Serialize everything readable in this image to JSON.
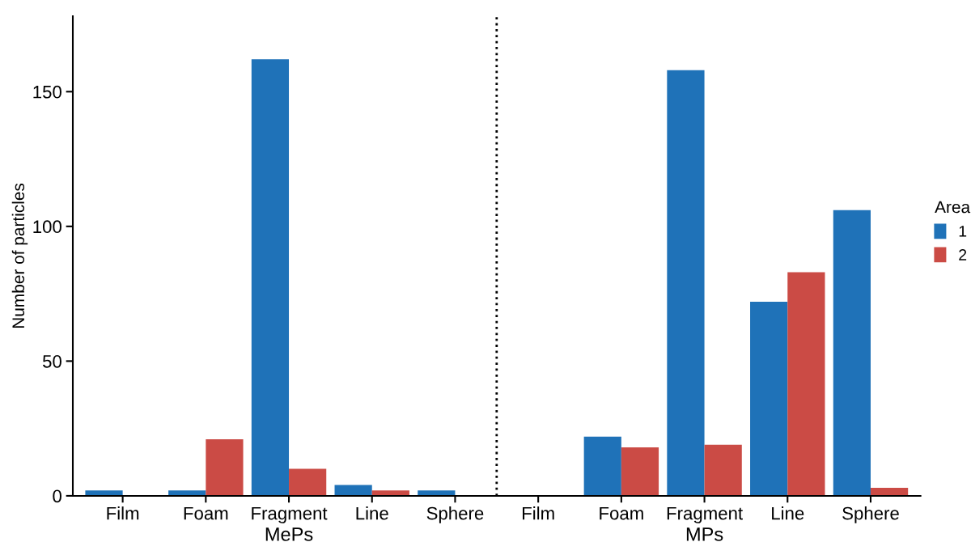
{
  "chart_data": {
    "type": "bar",
    "ylabel": "Number of particles",
    "legend_title": "Area",
    "legend": "right",
    "categories": [
      "Film",
      "Foam",
      "Fragment",
      "Line",
      "Sphere",
      "Film",
      "Foam",
      "Fragment",
      "Line",
      "Sphere"
    ],
    "series": [
      {
        "name": "1",
        "color": "#1f72b8",
        "values": [
          2,
          2,
          162,
          4,
          2,
          0,
          22,
          158,
          72,
          106
        ]
      },
      {
        "name": "2",
        "color": "#cb4b45",
        "values": [
          0,
          21,
          10,
          2,
          0,
          0,
          18,
          19,
          83,
          3
        ]
      }
    ],
    "ylim": [
      0,
      178
    ],
    "yticks": [
      0,
      50,
      100,
      150
    ],
    "grid": false,
    "annotations": [
      "MePs",
      "MPs"
    ]
  }
}
